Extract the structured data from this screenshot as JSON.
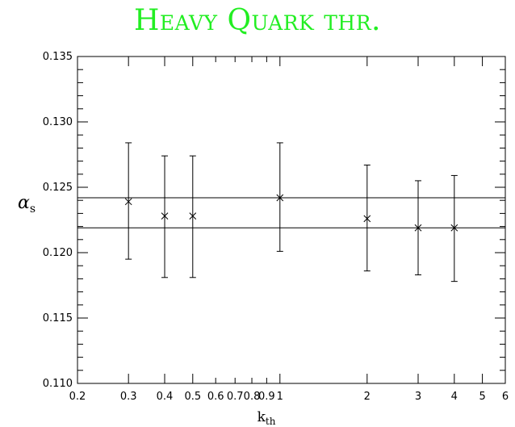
{
  "title": "Heavy Quark thr.",
  "chart_data": {
    "type": "scatter",
    "title": "Heavy Quark thr.",
    "xlabel_main": "k",
    "xlabel_sub": "th",
    "ylabel_main": "α",
    "ylabel_sub": "s",
    "xscale": "log",
    "xlim": [
      0.2,
      6
    ],
    "ylim": [
      0.11,
      0.135
    ],
    "x_ticks": [
      0.2,
      0.3,
      0.4,
      0.5,
      0.6,
      0.7,
      0.8,
      0.9,
      1,
      2,
      3,
      4,
      5,
      6
    ],
    "x_tick_labels": [
      "0.2",
      "0.3",
      "0.4",
      "0.5",
      "0.6",
      "0.7",
      "0.8",
      "0.9",
      "1",
      "2",
      "3",
      "4",
      "5",
      "6"
    ],
    "y_major_ticks": [
      0.11,
      0.115,
      0.12,
      0.125,
      0.13,
      0.135
    ],
    "y_tick_labels": [
      "0.110",
      "0.115",
      "0.120",
      "0.125",
      "0.130",
      "0.135"
    ],
    "y_minor_step": 0.001,
    "reference_lines": [
      0.1242,
      0.1219
    ],
    "points": [
      {
        "x": 0.3,
        "y": 0.1239,
        "low": 0.1195,
        "high": 0.1284
      },
      {
        "x": 0.4,
        "y": 0.1228,
        "low": 0.1181,
        "high": 0.1274
      },
      {
        "x": 0.5,
        "y": 0.1228,
        "low": 0.1181,
        "high": 0.1274
      },
      {
        "x": 1.0,
        "y": 0.1242,
        "low": 0.1201,
        "high": 0.1284
      },
      {
        "x": 2.0,
        "y": 0.1226,
        "low": 0.1186,
        "high": 0.1267
      },
      {
        "x": 3.0,
        "y": 0.1219,
        "low": 0.1183,
        "high": 0.1255
      },
      {
        "x": 4.0,
        "y": 0.1219,
        "low": 0.1178,
        "high": 0.1259
      }
    ],
    "grid": false,
    "legend": "none"
  }
}
